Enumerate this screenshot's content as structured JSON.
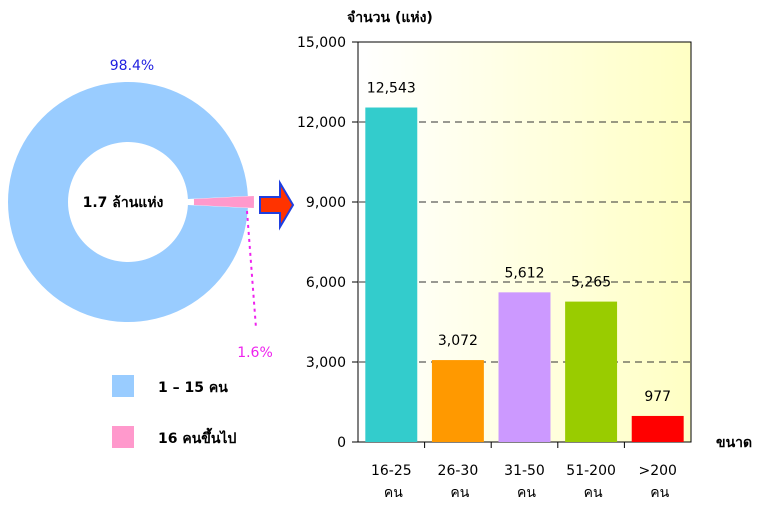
{
  "chart_data": [
    {
      "type": "pie",
      "subtype": "donut",
      "center_label": "1.7 ล้านแห่ง",
      "slices": [
        {
          "label": "1 – 15 คน",
          "value": 98.4,
          "value_label": "98.4%",
          "color": "#99ccff",
          "label_color": "#1f1fe0"
        },
        {
          "label": "16 คนขึ้นไป",
          "value": 1.6,
          "value_label": "1.6%",
          "color": "#ff99cc",
          "label_color": "#ee22ee"
        }
      ],
      "legend_position": "bottom"
    },
    {
      "type": "bar",
      "ylabel": "จำนวน (แห่ง)",
      "xlabel": "ขนาด",
      "ylim": [
        0,
        15000
      ],
      "yticks": [
        0,
        3000,
        6000,
        9000,
        12000,
        15000
      ],
      "ytick_labels": [
        "0",
        "3,000",
        "6,000",
        "9,000",
        "12,000",
        "15,000"
      ],
      "grid": true,
      "categories": [
        {
          "line1": "16-25",
          "line2": "คน"
        },
        {
          "line1": "26-30",
          "line2": "คน"
        },
        {
          "line1": "31-50",
          "line2": "คน"
        },
        {
          "line1": "51-200",
          "line2": "คน"
        },
        {
          "line1": ">200",
          "line2": "คน"
        }
      ],
      "values": [
        12543,
        3072,
        5612,
        5265,
        977
      ],
      "value_labels": [
        "12,543",
        "3,072",
        "5,612",
        "5,265",
        "977"
      ],
      "colors": [
        "#33cccc",
        "#ff9900",
        "#cc99ff",
        "#99cc00",
        "#ff0000"
      ],
      "plot_background": "#ffffcc"
    }
  ],
  "colors": {
    "arrow_fill": "#ff3300",
    "arrow_stroke": "#1f3fe0",
    "leader_line": "#ee22ee"
  }
}
